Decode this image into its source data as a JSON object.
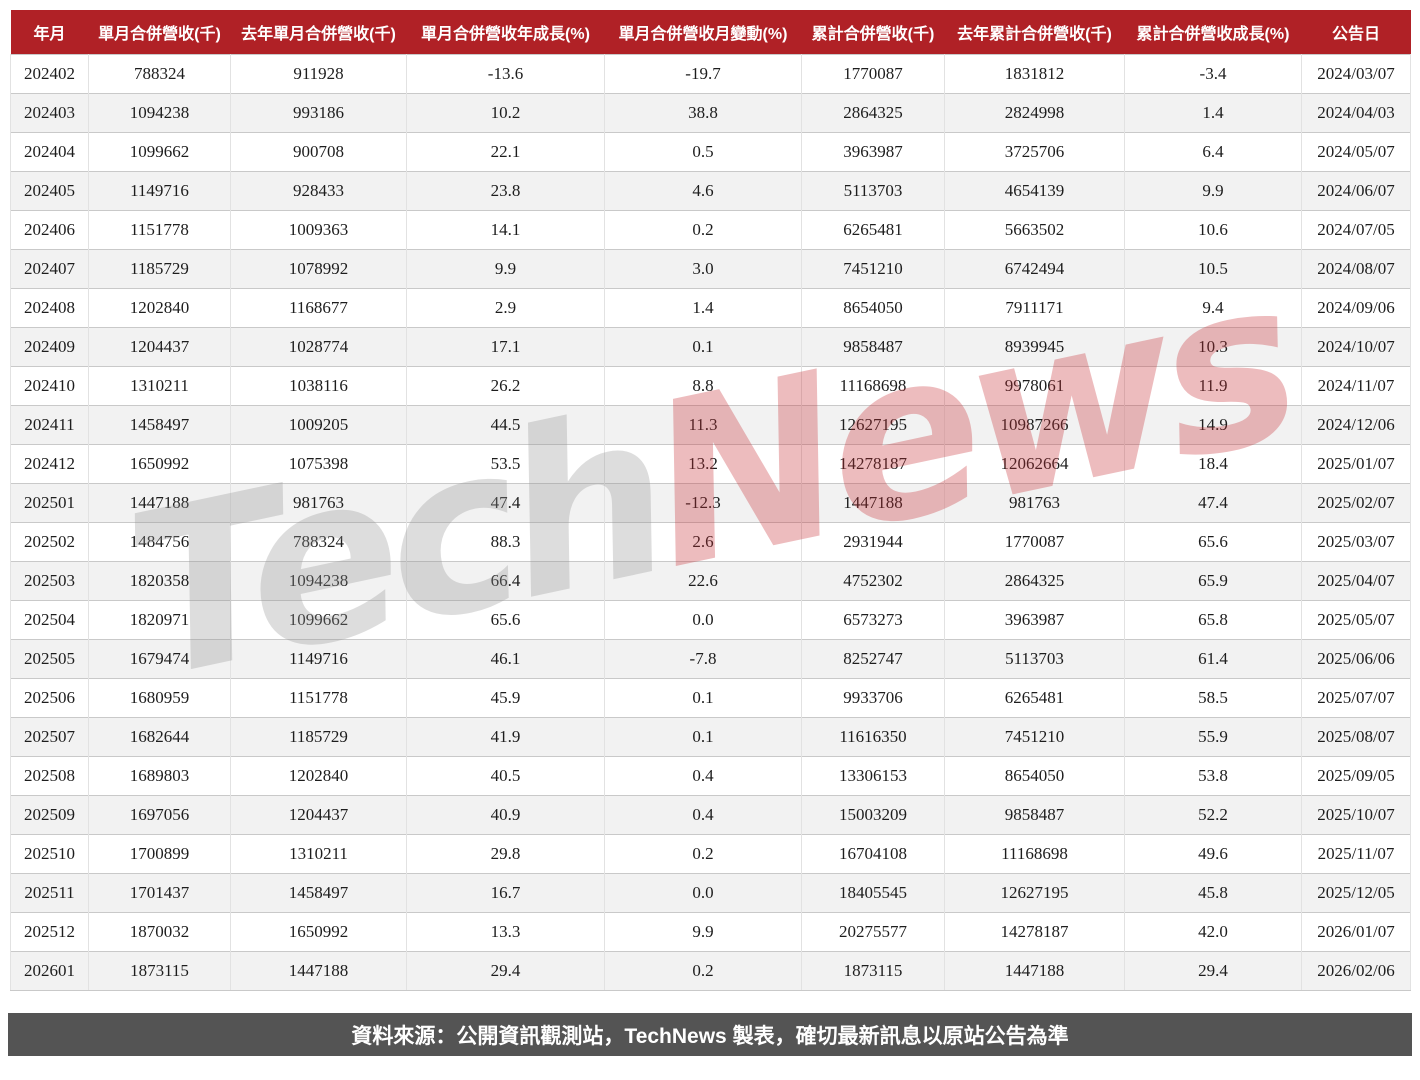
{
  "table_style": {
    "header_bg": "#b02126",
    "header_text_color": "#ffffff",
    "zebra_row_bg": "#f2f2f2",
    "footer_bg": "#545454"
  },
  "watermark": {
    "part1": "Tech",
    "part2": "News",
    "part1_color": "#969696",
    "part2_color": "#c62e34"
  },
  "footer": {
    "text": "資料來源：公開資訊觀測站，TechNews 製表，確切最新訊息以原站公告為準"
  },
  "chart_data": {
    "type": "table",
    "columns": [
      "年月",
      "單月合併營收(千)",
      "去年單月合併營收(千)",
      "單月合併營收年成長(%)",
      "單月合併營收月變動(%)",
      "累計合併營收(千)",
      "去年累計合併營收(千)",
      "累計合併營收成長(%)",
      "公告日"
    ],
    "rows": [
      [
        "202402",
        "788324",
        "911928",
        "-13.6",
        "-19.7",
        "1770087",
        "1831812",
        "-3.4",
        "2024/03/07"
      ],
      [
        "202403",
        "1094238",
        "993186",
        "10.2",
        "38.8",
        "2864325",
        "2824998",
        "1.4",
        "2024/04/03"
      ],
      [
        "202404",
        "1099662",
        "900708",
        "22.1",
        "0.5",
        "3963987",
        "3725706",
        "6.4",
        "2024/05/07"
      ],
      [
        "202405",
        "1149716",
        "928433",
        "23.8",
        "4.6",
        "5113703",
        "4654139",
        "9.9",
        "2024/06/07"
      ],
      [
        "202406",
        "1151778",
        "1009363",
        "14.1",
        "0.2",
        "6265481",
        "5663502",
        "10.6",
        "2024/07/05"
      ],
      [
        "202407",
        "1185729",
        "1078992",
        "9.9",
        "3.0",
        "7451210",
        "6742494",
        "10.5",
        "2024/08/07"
      ],
      [
        "202408",
        "1202840",
        "1168677",
        "2.9",
        "1.4",
        "8654050",
        "7911171",
        "9.4",
        "2024/09/06"
      ],
      [
        "202409",
        "1204437",
        "1028774",
        "17.1",
        "0.1",
        "9858487",
        "8939945",
        "10.3",
        "2024/10/07"
      ],
      [
        "202410",
        "1310211",
        "1038116",
        "26.2",
        "8.8",
        "11168698",
        "9978061",
        "11.9",
        "2024/11/07"
      ],
      [
        "202411",
        "1458497",
        "1009205",
        "44.5",
        "11.3",
        "12627195",
        "10987266",
        "14.9",
        "2024/12/06"
      ],
      [
        "202412",
        "1650992",
        "1075398",
        "53.5",
        "13.2",
        "14278187",
        "12062664",
        "18.4",
        "2025/01/07"
      ],
      [
        "202501",
        "1447188",
        "981763",
        "47.4",
        "-12.3",
        "1447188",
        "981763",
        "47.4",
        "2025/02/07"
      ],
      [
        "202502",
        "1484756",
        "788324",
        "88.3",
        "2.6",
        "2931944",
        "1770087",
        "65.6",
        "2025/03/07"
      ],
      [
        "202503",
        "1820358",
        "1094238",
        "66.4",
        "22.6",
        "4752302",
        "2864325",
        "65.9",
        "2025/04/07"
      ],
      [
        "202504",
        "1820971",
        "1099662",
        "65.6",
        "0.0",
        "6573273",
        "3963987",
        "65.8",
        "2025/05/07"
      ],
      [
        "202505",
        "1679474",
        "1149716",
        "46.1",
        "-7.8",
        "8252747",
        "5113703",
        "61.4",
        "2025/06/06"
      ],
      [
        "202506",
        "1680959",
        "1151778",
        "45.9",
        "0.1",
        "9933706",
        "6265481",
        "58.5",
        "2025/07/07"
      ],
      [
        "202507",
        "1682644",
        "1185729",
        "41.9",
        "0.1",
        "11616350",
        "7451210",
        "55.9",
        "2025/08/07"
      ],
      [
        "202508",
        "1689803",
        "1202840",
        "40.5",
        "0.4",
        "13306153",
        "8654050",
        "53.8",
        "2025/09/05"
      ],
      [
        "202509",
        "1697056",
        "1204437",
        "40.9",
        "0.4",
        "15003209",
        "9858487",
        "52.2",
        "2025/10/07"
      ],
      [
        "202510",
        "1700899",
        "1310211",
        "29.8",
        "0.2",
        "16704108",
        "11168698",
        "49.6",
        "2025/11/07"
      ],
      [
        "202511",
        "1701437",
        "1458497",
        "16.7",
        "0.0",
        "18405545",
        "12627195",
        "45.8",
        "2025/12/05"
      ],
      [
        "202512",
        "1870032",
        "1650992",
        "13.3",
        "9.9",
        "20275577",
        "14278187",
        "42.0",
        "2026/01/07"
      ],
      [
        "202601",
        "1873115",
        "1447188",
        "29.4",
        "0.2",
        "1873115",
        "1447188",
        "29.4",
        "2026/02/06"
      ]
    ]
  }
}
